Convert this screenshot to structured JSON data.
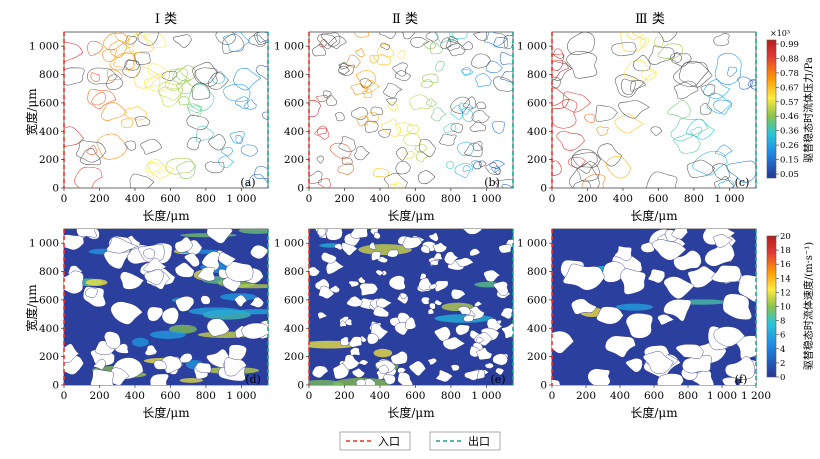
{
  "column_titles": [
    "Ⅰ 类",
    "Ⅱ 类",
    "Ⅲ 类"
  ],
  "axis": {
    "xlabel": "长度/μm",
    "ylabel": "宽度/μm",
    "y_ticks": [
      "0",
      "200",
      "400",
      "600",
      "800",
      "1 000"
    ],
    "x_ticks_a": [
      "0",
      "200",
      "400",
      "600",
      "800",
      "1 000"
    ],
    "x_ticks_f": [
      "0",
      "200",
      "400",
      "600",
      "800",
      "1 000",
      "1 200"
    ]
  },
  "panel_labels": [
    "(a)",
    "(b)",
    "(c)",
    "(d)",
    "(e)",
    "(f)"
  ],
  "pressure_bar": {
    "multiplier": "×10³",
    "ticks": [
      "0.99",
      "0.88",
      "0.78",
      "0.67",
      "0.57",
      "0.46",
      "0.36",
      "0.26",
      "0.15",
      "0.05"
    ],
    "label": "驱替稳态时流体压力/Pa"
  },
  "velocity_bar": {
    "ticks": [
      "20",
      "18",
      "16",
      "14",
      "12",
      "10",
      "8",
      "6",
      "4",
      "2",
      "0"
    ],
    "label": "驱替稳态时流体速度/(m·s⁻¹)"
  },
  "legend": {
    "inlet": "入口",
    "outlet": "出口"
  },
  "colors": {
    "inlet": "#e8332d",
    "outlet": "#1aa486",
    "velocity_base": "#2b3f9e",
    "pressure_high": "#c62828",
    "pressure_low": "#283593"
  }
}
